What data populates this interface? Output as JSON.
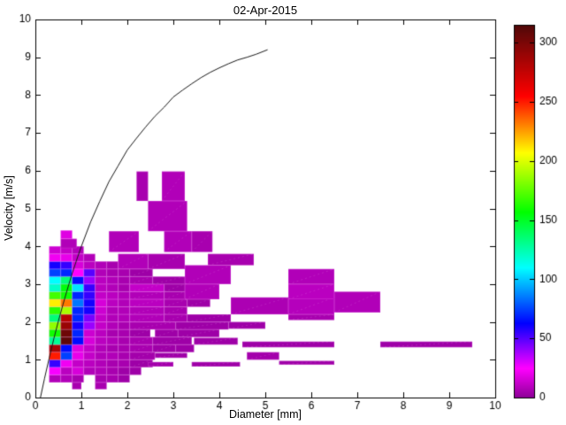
{
  "chart_data": {
    "type": "heatmap",
    "title": "02-Apr-2015",
    "xlabel": "Diameter [mm]",
    "ylabel": "Velocity [m/s]",
    "xlim": [
      0,
      10
    ],
    "ylim": [
      0,
      10
    ],
    "xticks": [
      0,
      1,
      2,
      3,
      4,
      5,
      6,
      7,
      8,
      9,
      10
    ],
    "yticks": [
      0,
      1,
      2,
      3,
      4,
      5,
      6,
      7,
      8,
      9,
      10
    ],
    "grid": false,
    "clim": [
      0,
      315
    ],
    "colorbar": {
      "position": "right",
      "ticks": [
        0,
        50,
        100,
        150,
        200,
        250,
        300
      ],
      "max": 315
    },
    "colormap_stops": [
      [
        0,
        "#8C0096"
      ],
      [
        25,
        "#FF00FF"
      ],
      [
        63,
        "#0000FF"
      ],
      [
        110,
        "#00FFFF"
      ],
      [
        157,
        "#00FF00"
      ],
      [
        207,
        "#FFFF00"
      ],
      [
        255,
        "#FF0000"
      ],
      [
        315,
        "#500808"
      ]
    ],
    "cell_rows_note": "counts on a diameter/velocity grid; x0=first column left edge, dx=column width, h=row height, y=row bottom; 0 = empty cell",
    "rows": [
      {
        "y": 0.4,
        "x0": 0.3,
        "dx": 0.25,
        "h": 0.2,
        "vals": [
          8,
          8,
          6,
          0,
          6,
          6,
          4
        ]
      },
      {
        "y": 0.6,
        "x0": 0.3,
        "dx": 0.25,
        "h": 0.2,
        "vals": [
          26,
          10,
          16,
          8,
          8,
          6,
          4,
          4
        ]
      },
      {
        "y": 0.8,
        "x0": 0.3,
        "dx": 0.25,
        "h": 0.2,
        "vals": [
          55,
          22,
          12,
          10,
          8,
          6,
          6
        ]
      },
      {
        "y": 1.0,
        "x0": 0.3,
        "dx": 0.25,
        "h": 0.2,
        "vals": [
          250,
          75,
          20,
          12,
          8,
          8,
          6
        ]
      },
      {
        "y": 1.2,
        "x0": 0.3,
        "dx": 0.25,
        "h": 0.2,
        "vals": [
          285,
          65,
          18,
          12,
          8,
          6,
          6
        ]
      },
      {
        "y": 1.4,
        "x0": 0.3,
        "dx": 0.25,
        "h": 0.2,
        "vals": [
          130,
          310,
          65,
          16,
          10,
          8,
          6
        ]
      },
      {
        "y": 1.6,
        "x0": 0.3,
        "dx": 0.25,
        "h": 0.2,
        "vals": [
          160,
          305,
          70,
          14,
          10,
          6,
          6
        ]
      },
      {
        "y": 1.8,
        "x0": 0.3,
        "dx": 0.25,
        "h": 0.2,
        "vals": [
          185,
          290,
          60,
          40,
          12,
          8,
          6
        ]
      },
      {
        "y": 2.0,
        "x0": 0.3,
        "dx": 0.25,
        "h": 0.2,
        "vals": [
          135,
          280,
          70,
          45,
          12,
          8,
          8
        ]
      },
      {
        "y": 2.2,
        "x0": 0.3,
        "dx": 0.25,
        "h": 0.2,
        "vals": [
          165,
          190,
          70,
          60,
          14,
          8,
          8
        ]
      },
      {
        "y": 2.4,
        "x0": 0.3,
        "dx": 0.25,
        "h": 0.2,
        "vals": [
          210,
          232,
          85,
          60,
          16,
          10,
          8
        ]
      },
      {
        "y": 2.6,
        "x0": 0.3,
        "dx": 0.25,
        "h": 0.2,
        "vals": [
          170,
          160,
          70,
          55,
          12,
          10,
          8
        ]
      },
      {
        "y": 2.8,
        "x0": 0.3,
        "dx": 0.25,
        "h": 0.2,
        "vals": [
          120,
          155,
          105,
          55,
          10,
          8,
          6
        ]
      },
      {
        "y": 3.0,
        "x0": 0.3,
        "dx": 0.25,
        "h": 0.2,
        "vals": [
          110,
          135,
          65,
          40,
          10,
          8,
          6
        ]
      },
      {
        "y": 3.2,
        "x0": 0.3,
        "dx": 0.25,
        "h": 0.2,
        "vals": [
          75,
          70,
          25,
          50,
          8,
          6,
          6
        ]
      },
      {
        "y": 3.4,
        "x0": 0.3,
        "dx": 0.25,
        "h": 0.2,
        "vals": [
          60,
          55,
          16,
          10,
          8,
          6
        ]
      },
      {
        "y": 3.6,
        "x0": 0.3,
        "dx": 0.25,
        "h": 0.2,
        "vals": [
          22,
          20,
          12,
          8
        ]
      },
      {
        "y": 3.8,
        "x0": 0.3,
        "dx": 0.25,
        "h": 0.2,
        "vals": [
          14,
          12,
          8
        ]
      }
    ],
    "extra_cells_note": "[x, y_bottom, width, height, count]",
    "extra_cells": [
      [
        2.05,
        0.8,
        0.5,
        0.2,
        4
      ],
      [
        2.05,
        1.0,
        0.55,
        0.2,
        5
      ],
      [
        2.05,
        1.2,
        0.5,
        0.2,
        6
      ],
      [
        2.55,
        1.2,
        0.5,
        0.2,
        4
      ],
      [
        3.05,
        1.2,
        0.4,
        0.2,
        4
      ],
      [
        2.05,
        1.4,
        0.5,
        0.2,
        6
      ],
      [
        2.55,
        1.4,
        0.85,
        0.2,
        4
      ],
      [
        3.45,
        1.4,
        0.95,
        0.18,
        4
      ],
      [
        2.05,
        1.6,
        0.45,
        0.2,
        4
      ],
      [
        2.6,
        1.6,
        0.5,
        0.2,
        4
      ],
      [
        3.1,
        1.6,
        0.9,
        0.2,
        4
      ],
      [
        2.05,
        1.8,
        1.0,
        0.2,
        6
      ],
      [
        3.05,
        1.8,
        1.15,
        0.2,
        4
      ],
      [
        4.2,
        1.82,
        0.8,
        0.18,
        4
      ],
      [
        2.05,
        2.0,
        0.75,
        0.2,
        8
      ],
      [
        2.8,
        2.0,
        0.5,
        0.2,
        6
      ],
      [
        3.3,
        2.0,
        0.95,
        0.2,
        4
      ],
      [
        5.5,
        2.05,
        1.0,
        0.15,
        6
      ],
      [
        2.05,
        2.2,
        0.75,
        0.2,
        8
      ],
      [
        2.8,
        2.2,
        0.5,
        0.2,
        6
      ],
      [
        4.25,
        2.2,
        1.25,
        0.45,
        7
      ],
      [
        5.5,
        2.2,
        1.0,
        0.45,
        9
      ],
      [
        6.5,
        2.25,
        1.0,
        0.55,
        8
      ],
      [
        2.05,
        2.4,
        0.75,
        0.2,
        10
      ],
      [
        2.8,
        2.4,
        0.5,
        0.2,
        6
      ],
      [
        3.3,
        2.4,
        0.5,
        0.2,
        4
      ],
      [
        2.05,
        2.6,
        0.75,
        0.2,
        8
      ],
      [
        2.8,
        2.6,
        0.45,
        0.2,
        6
      ],
      [
        3.25,
        2.6,
        0.75,
        0.4,
        8
      ],
      [
        5.5,
        2.6,
        1.0,
        0.4,
        10
      ],
      [
        2.05,
        2.8,
        0.75,
        0.2,
        12
      ],
      [
        2.8,
        2.8,
        0.45,
        0.2,
        4
      ],
      [
        2.05,
        3.0,
        0.5,
        0.2,
        6
      ],
      [
        2.55,
        3.0,
        0.7,
        0.2,
        4
      ],
      [
        3.25,
        3.0,
        1.0,
        0.5,
        8
      ],
      [
        5.5,
        3.0,
        1.0,
        0.4,
        8
      ],
      [
        2.05,
        3.2,
        0.5,
        0.2,
        4
      ],
      [
        1.8,
        3.4,
        0.65,
        0.4,
        8
      ],
      [
        2.45,
        3.4,
        0.8,
        0.4,
        6
      ],
      [
        0.55,
        3.95,
        0.35,
        0.25,
        8
      ],
      [
        0.55,
        4.2,
        0.25,
        0.22,
        18
      ],
      [
        1.6,
        3.85,
        0.65,
        0.55,
        8
      ],
      [
        2.8,
        3.85,
        0.6,
        0.55,
        8
      ],
      [
        3.4,
        3.85,
        0.45,
        0.55,
        6
      ],
      [
        3.75,
        3.5,
        1.0,
        0.3,
        6
      ],
      [
        2.45,
        4.4,
        0.85,
        0.8,
        8
      ],
      [
        2.2,
        5.2,
        0.25,
        0.78,
        6
      ],
      [
        2.75,
        5.2,
        0.5,
        0.78,
        8
      ],
      [
        4.5,
        1.33,
        2.0,
        0.15,
        4
      ],
      [
        7.5,
        1.33,
        2.0,
        0.15,
        4
      ],
      [
        2.45,
        0.82,
        0.55,
        0.12,
        5
      ],
      [
        3.4,
        0.82,
        1.05,
        0.12,
        4
      ],
      [
        5.3,
        0.87,
        1.2,
        0.1,
        4
      ],
      [
        2.6,
        1.05,
        0.7,
        0.13,
        4
      ],
      [
        4.6,
        1.0,
        0.7,
        0.2,
        5
      ],
      [
        0.8,
        0.22,
        0.2,
        0.18,
        6
      ],
      [
        1.3,
        0.22,
        0.25,
        0.18,
        6
      ]
    ],
    "terminal_velocity_curve": [
      [
        0.11,
        0.0
      ],
      [
        0.2,
        0.51
      ],
      [
        0.3,
        1.04
      ],
      [
        0.4,
        1.55
      ],
      [
        0.5,
        2.02
      ],
      [
        0.6,
        2.46
      ],
      [
        0.7,
        2.88
      ],
      [
        0.8,
        3.28
      ],
      [
        0.9,
        3.65
      ],
      [
        1.0,
        4.0
      ],
      [
        1.2,
        4.64
      ],
      [
        1.4,
        5.19
      ],
      [
        1.6,
        5.71
      ],
      [
        1.8,
        6.13
      ],
      [
        2.0,
        6.55
      ],
      [
        2.2,
        6.86
      ],
      [
        2.4,
        7.16
      ],
      [
        2.6,
        7.44
      ],
      [
        2.8,
        7.68
      ],
      [
        3.0,
        7.95
      ],
      [
        3.2,
        8.13
      ],
      [
        3.4,
        8.3
      ],
      [
        3.6,
        8.46
      ],
      [
        3.8,
        8.6
      ],
      [
        4.0,
        8.72
      ],
      [
        4.2,
        8.83
      ],
      [
        4.4,
        8.93
      ],
      [
        4.6,
        9.0
      ],
      [
        4.8,
        9.08
      ],
      [
        5.05,
        9.2
      ]
    ]
  }
}
